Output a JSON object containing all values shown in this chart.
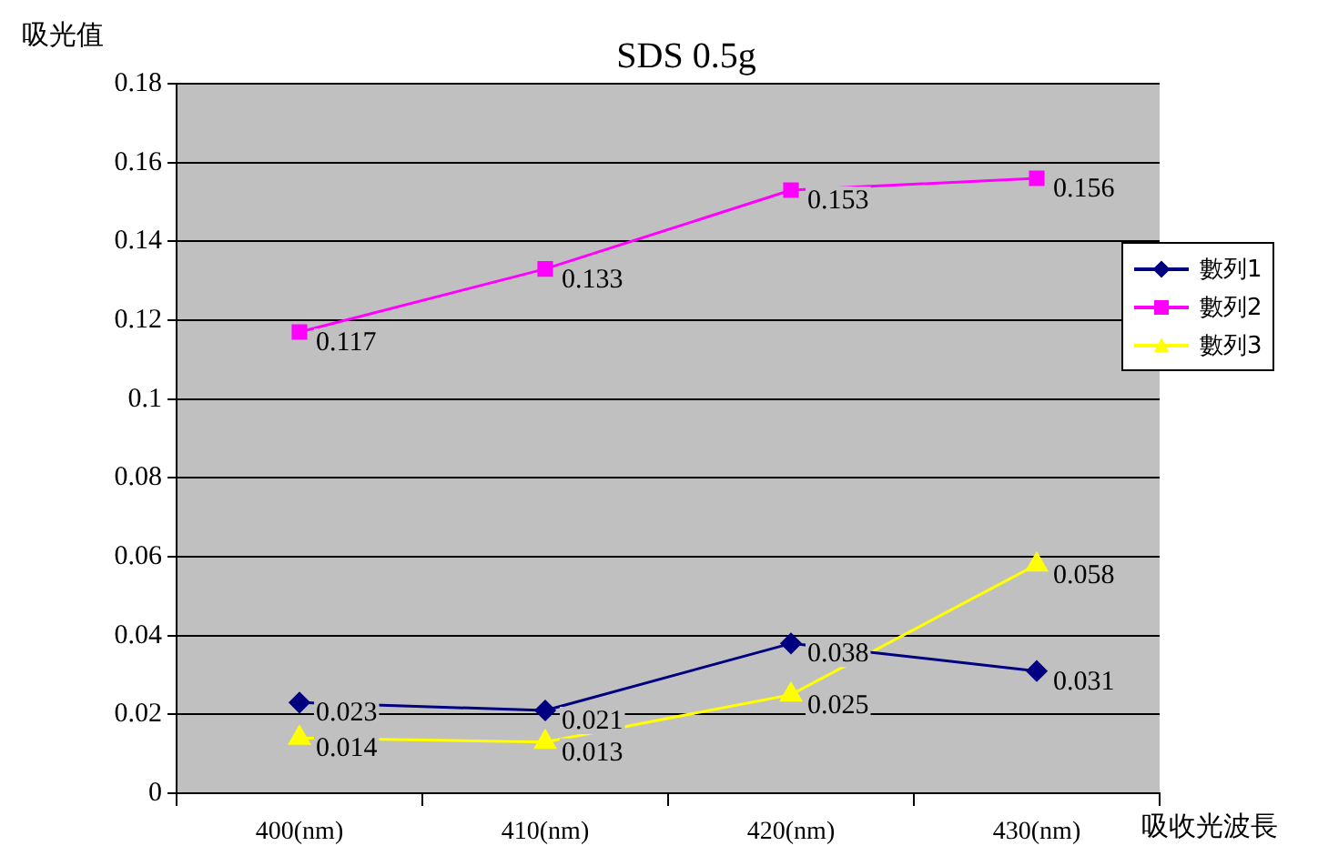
{
  "chart_data": {
    "type": "line",
    "title": "SDS 0.5g",
    "xlabel": "吸收光波長",
    "ylabel": "吸光值",
    "categories": [
      "400(nm)",
      "410(nm)",
      "420(nm)",
      "430(nm)"
    ],
    "series": [
      {
        "name": "數列1",
        "color": "#000080",
        "marker": "diamond",
        "values": [
          0.023,
          0.021,
          0.038,
          0.031
        ]
      },
      {
        "name": "數列2",
        "color": "#ff00ff",
        "marker": "square",
        "values": [
          0.117,
          0.133,
          0.153,
          0.156
        ]
      },
      {
        "name": "數列3",
        "color": "#ffff00",
        "marker": "triangle",
        "values": [
          0.014,
          0.013,
          0.025,
          0.058
        ]
      }
    ],
    "ylim": [
      0,
      0.18
    ],
    "yticks": [
      0,
      0.02,
      0.04,
      0.06,
      0.08,
      0.1,
      0.12,
      0.14,
      0.16,
      0.18
    ],
    "grid": "y",
    "legend": "right",
    "data_labels": true
  }
}
